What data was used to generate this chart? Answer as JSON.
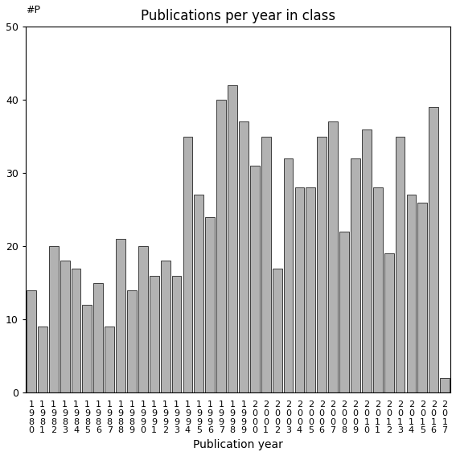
{
  "title": "Publications per year in class",
  "xlabel": "Publication year",
  "ylabel": "#P",
  "years": [
    "1980",
    "1981",
    "1982",
    "1983",
    "1984",
    "1985",
    "1986",
    "1987",
    "1988",
    "1989",
    "1990",
    "1991",
    "1992",
    "1993",
    "1994",
    "1995",
    "1996",
    "1997",
    "1998",
    "1999",
    "2000",
    "2001",
    "2002",
    "2003",
    "2004",
    "2005",
    "2006",
    "2007",
    "2008",
    "2009",
    "2010",
    "2011",
    "2012",
    "2013",
    "2014",
    "2015",
    "2016",
    "2017"
  ],
  "values": [
    14,
    9,
    20,
    18,
    17,
    12,
    15,
    9,
    21,
    14,
    20,
    16,
    18,
    16,
    35,
    27,
    24,
    40,
    42,
    37,
    31,
    35,
    17,
    32,
    28,
    28,
    35,
    37,
    22,
    32,
    36,
    28,
    19,
    35,
    27,
    26,
    39,
    2
  ],
  "bar_color": "#b2b2b2",
  "bar_edgecolor": "#000000",
  "ylim": [
    0,
    50
  ],
  "yticks": [
    0,
    10,
    20,
    30,
    40,
    50
  ],
  "background_color": "#ffffff",
  "title_fontsize": 12,
  "xlabel_fontsize": 10,
  "tick_fontsize": 9
}
